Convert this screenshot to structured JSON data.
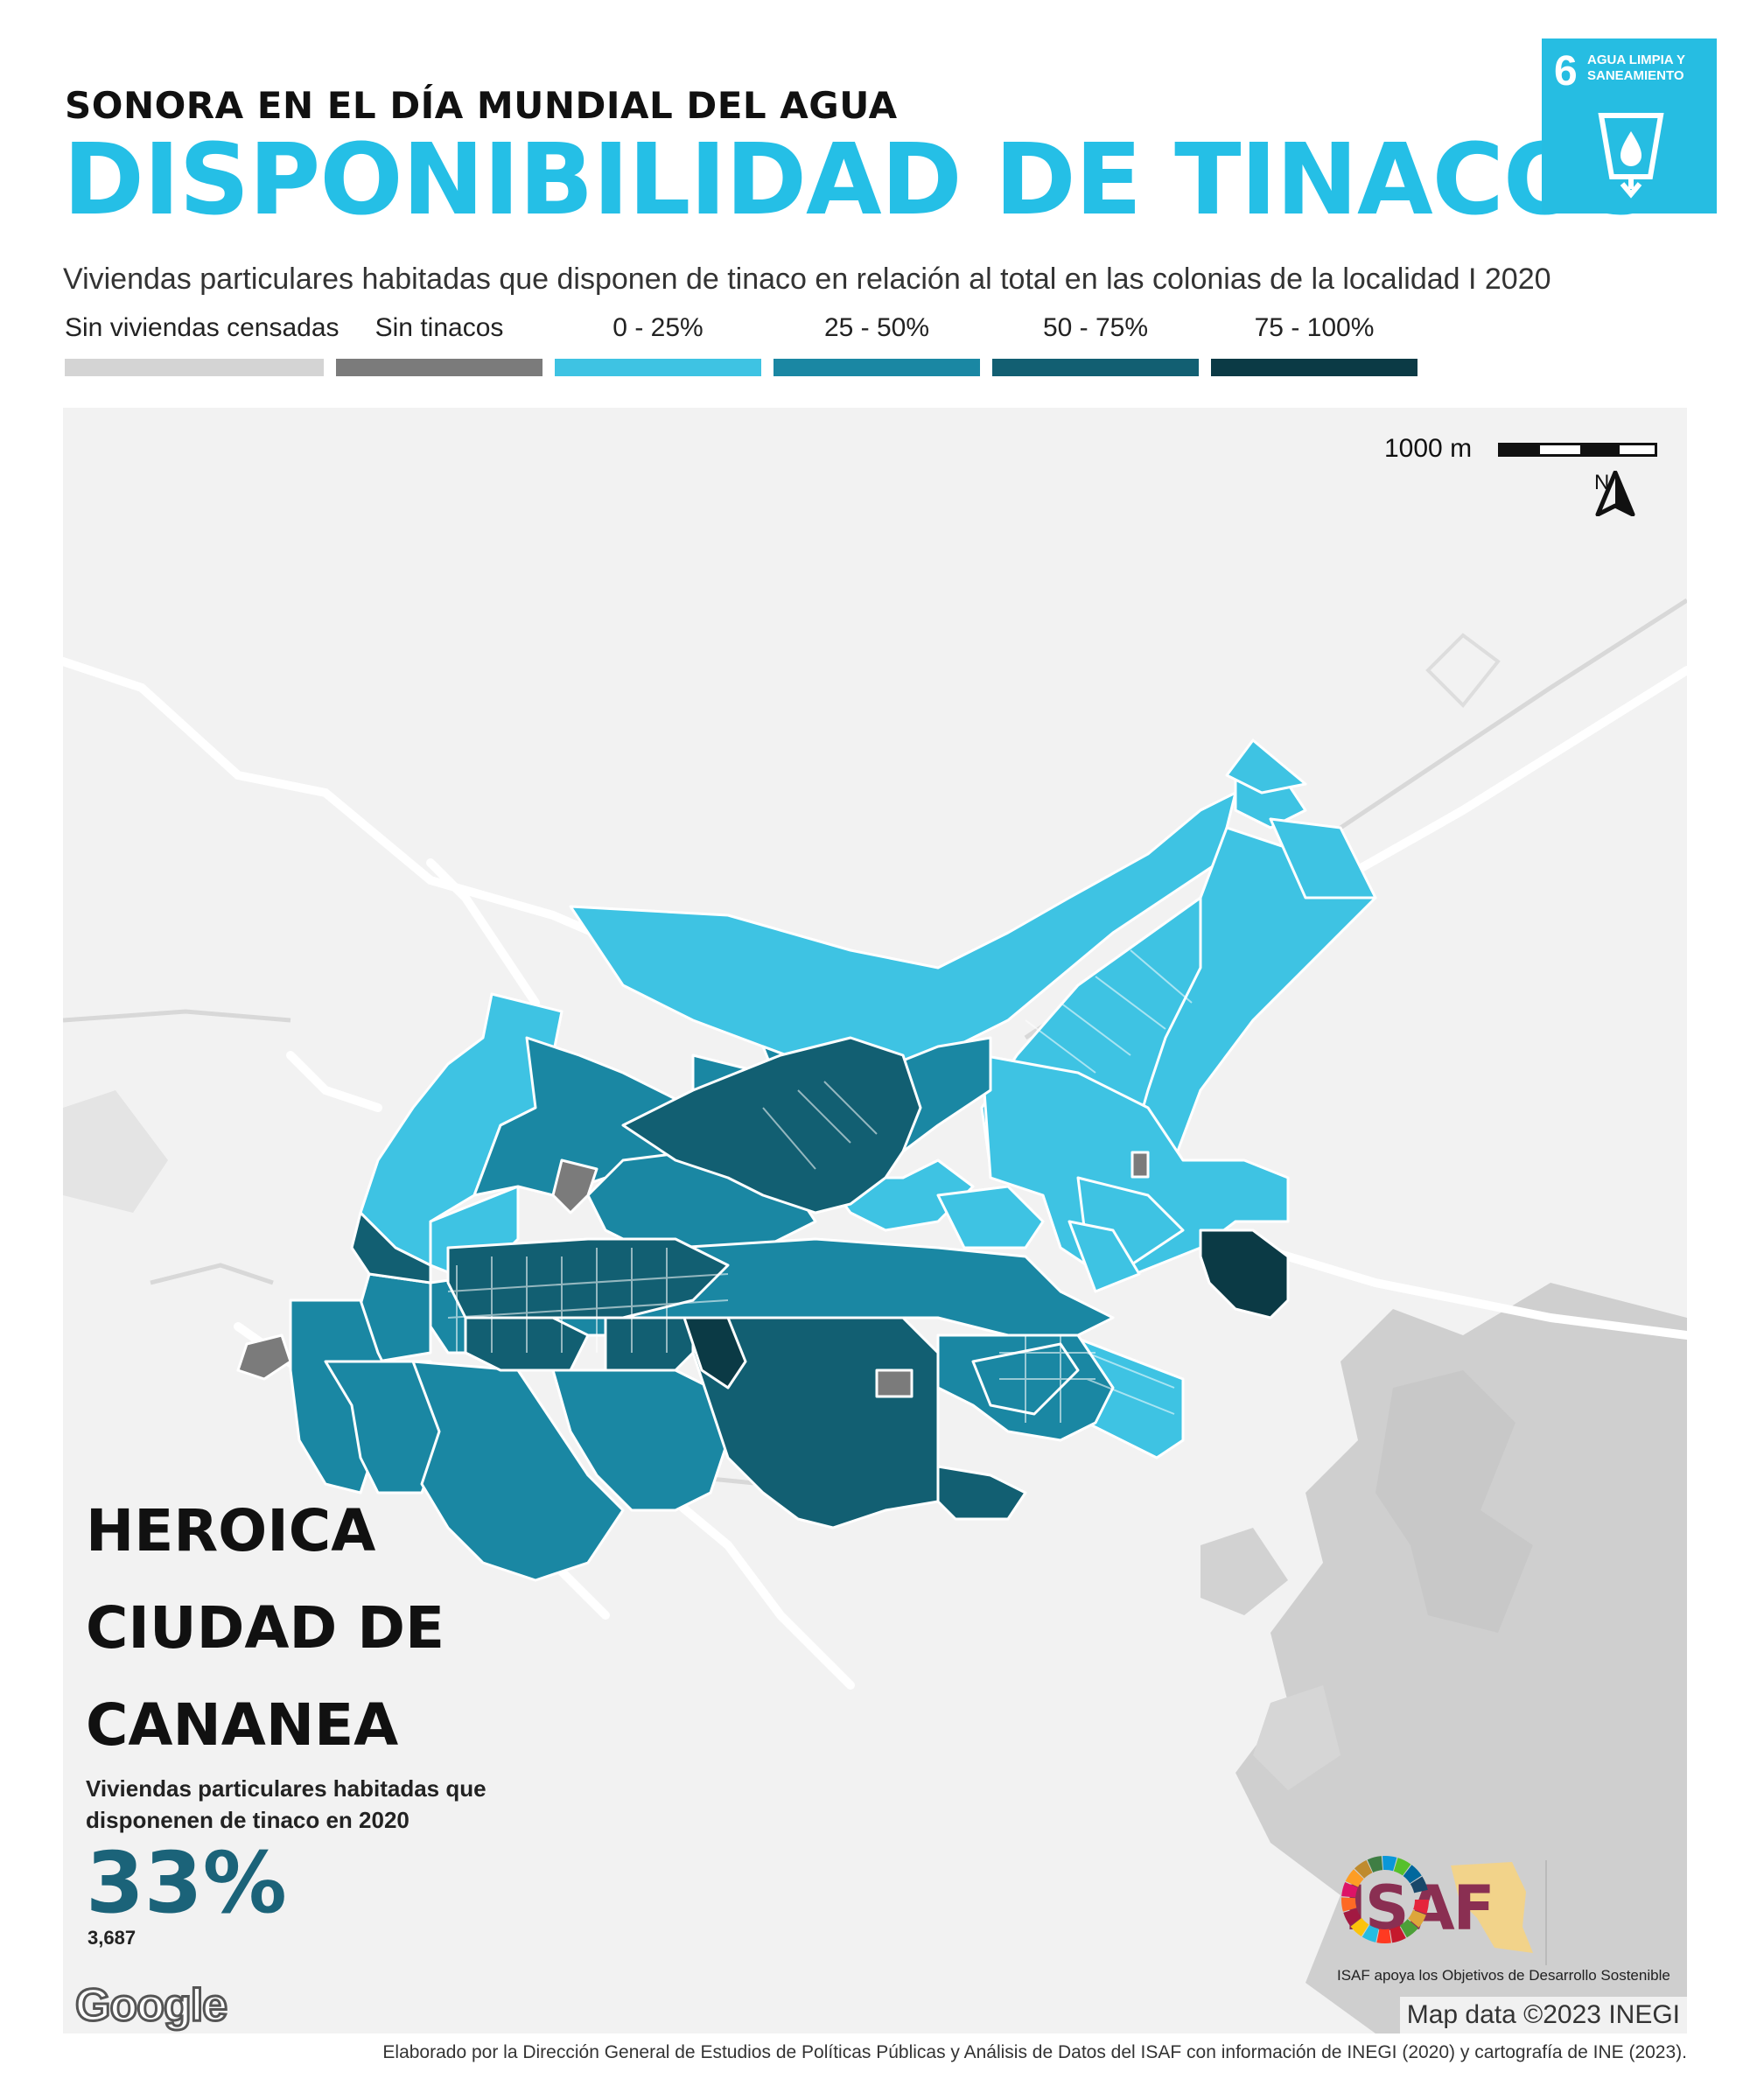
{
  "header": {
    "supertitle": "SONORA EN EL DÍA MUNDIAL DEL AGUA",
    "title": "DISPONIBILIDAD DE TINACOS",
    "subtitle": "Viviendas particulares habitadas que disponen de tinaco en relación al total en las colonias de la localidad I 2020"
  },
  "sdg_badge": {
    "number": "6",
    "text": "AGUA LIMPIA Y SANEAMIENTO",
    "color": "#26bde2",
    "icon": "water-glass-icon"
  },
  "legend": [
    {
      "label": "Sin viviendas censadas",
      "color": "#d4d4d4"
    },
    {
      "label": "Sin tinacos",
      "color": "#7b7b7b"
    },
    {
      "label": "0 - 25%",
      "color": "#3ec3e3"
    },
    {
      "label": "25 - 50%",
      "color": "#1a87a3"
    },
    {
      "label": "50 - 75%",
      "color": "#125f72"
    },
    {
      "label": "75 - 100%",
      "color": "#0b3a45"
    }
  ],
  "map": {
    "scale_label": "1000 m",
    "north_label": "N",
    "city": {
      "line1": "HEROICA",
      "line2": "CIUDAD DE",
      "line3": "CANANEA"
    },
    "stat_label": "Viviendas particulares habitadas que disponenen de tinaco en 2020",
    "stat_value": "33%",
    "stat_count": "3,687",
    "google": "Google",
    "map_data": "Map data ©2023 INEGI",
    "isaf_logo": "ISAF",
    "isaf_caption": "ISAF apoya los Objetivos de Desarrollo Sostenible"
  },
  "footer": "Elaborado por la Dirección General de Estudios de Políticas Públicas y Análisis de Datos del ISAF con información de INEGI (2020) y cartografía de INE (2023)."
}
